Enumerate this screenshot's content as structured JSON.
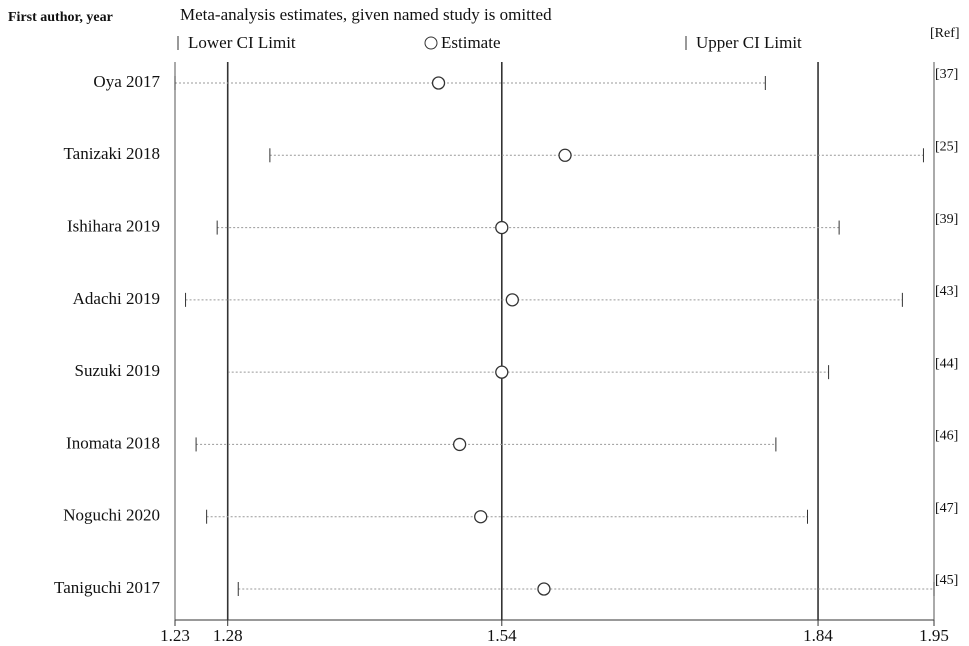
{
  "chart_data": {
    "type": "forest",
    "header_left": "First author, year",
    "title": "Meta-analysis estimates, given named study is omitted",
    "ref_header": "[Ref]",
    "categories": [
      "Oya 2017",
      "Tanizaki 2018",
      "Ishihara 2019",
      "Adachi 2019",
      "Suzuki 2019",
      "Inomata 2018",
      "Noguchi 2020",
      "Taniguchi 2017"
    ],
    "series": [
      {
        "name": "Lower CI Limit",
        "values": [
          1.23,
          1.32,
          1.27,
          1.24,
          1.28,
          1.25,
          1.26,
          1.29
        ]
      },
      {
        "name": "Estimate",
        "values": [
          1.48,
          1.6,
          1.54,
          1.55,
          1.54,
          1.5,
          1.52,
          1.58
        ]
      },
      {
        "name": "Upper CI Limit",
        "values": [
          1.79,
          1.94,
          1.86,
          1.92,
          1.85,
          1.8,
          1.83,
          1.95
        ]
      }
    ],
    "refs": [
      "[37]",
      "[25]",
      "[39]",
      "[43]",
      "[44]",
      "[46]",
      "[47]",
      "[45]"
    ],
    "xlim": [
      1.23,
      1.95
    ],
    "xticks": [
      1.23,
      1.28,
      1.54,
      1.84,
      1.95
    ],
    "reference_lines": [
      1.28,
      1.54,
      1.84
    ]
  }
}
